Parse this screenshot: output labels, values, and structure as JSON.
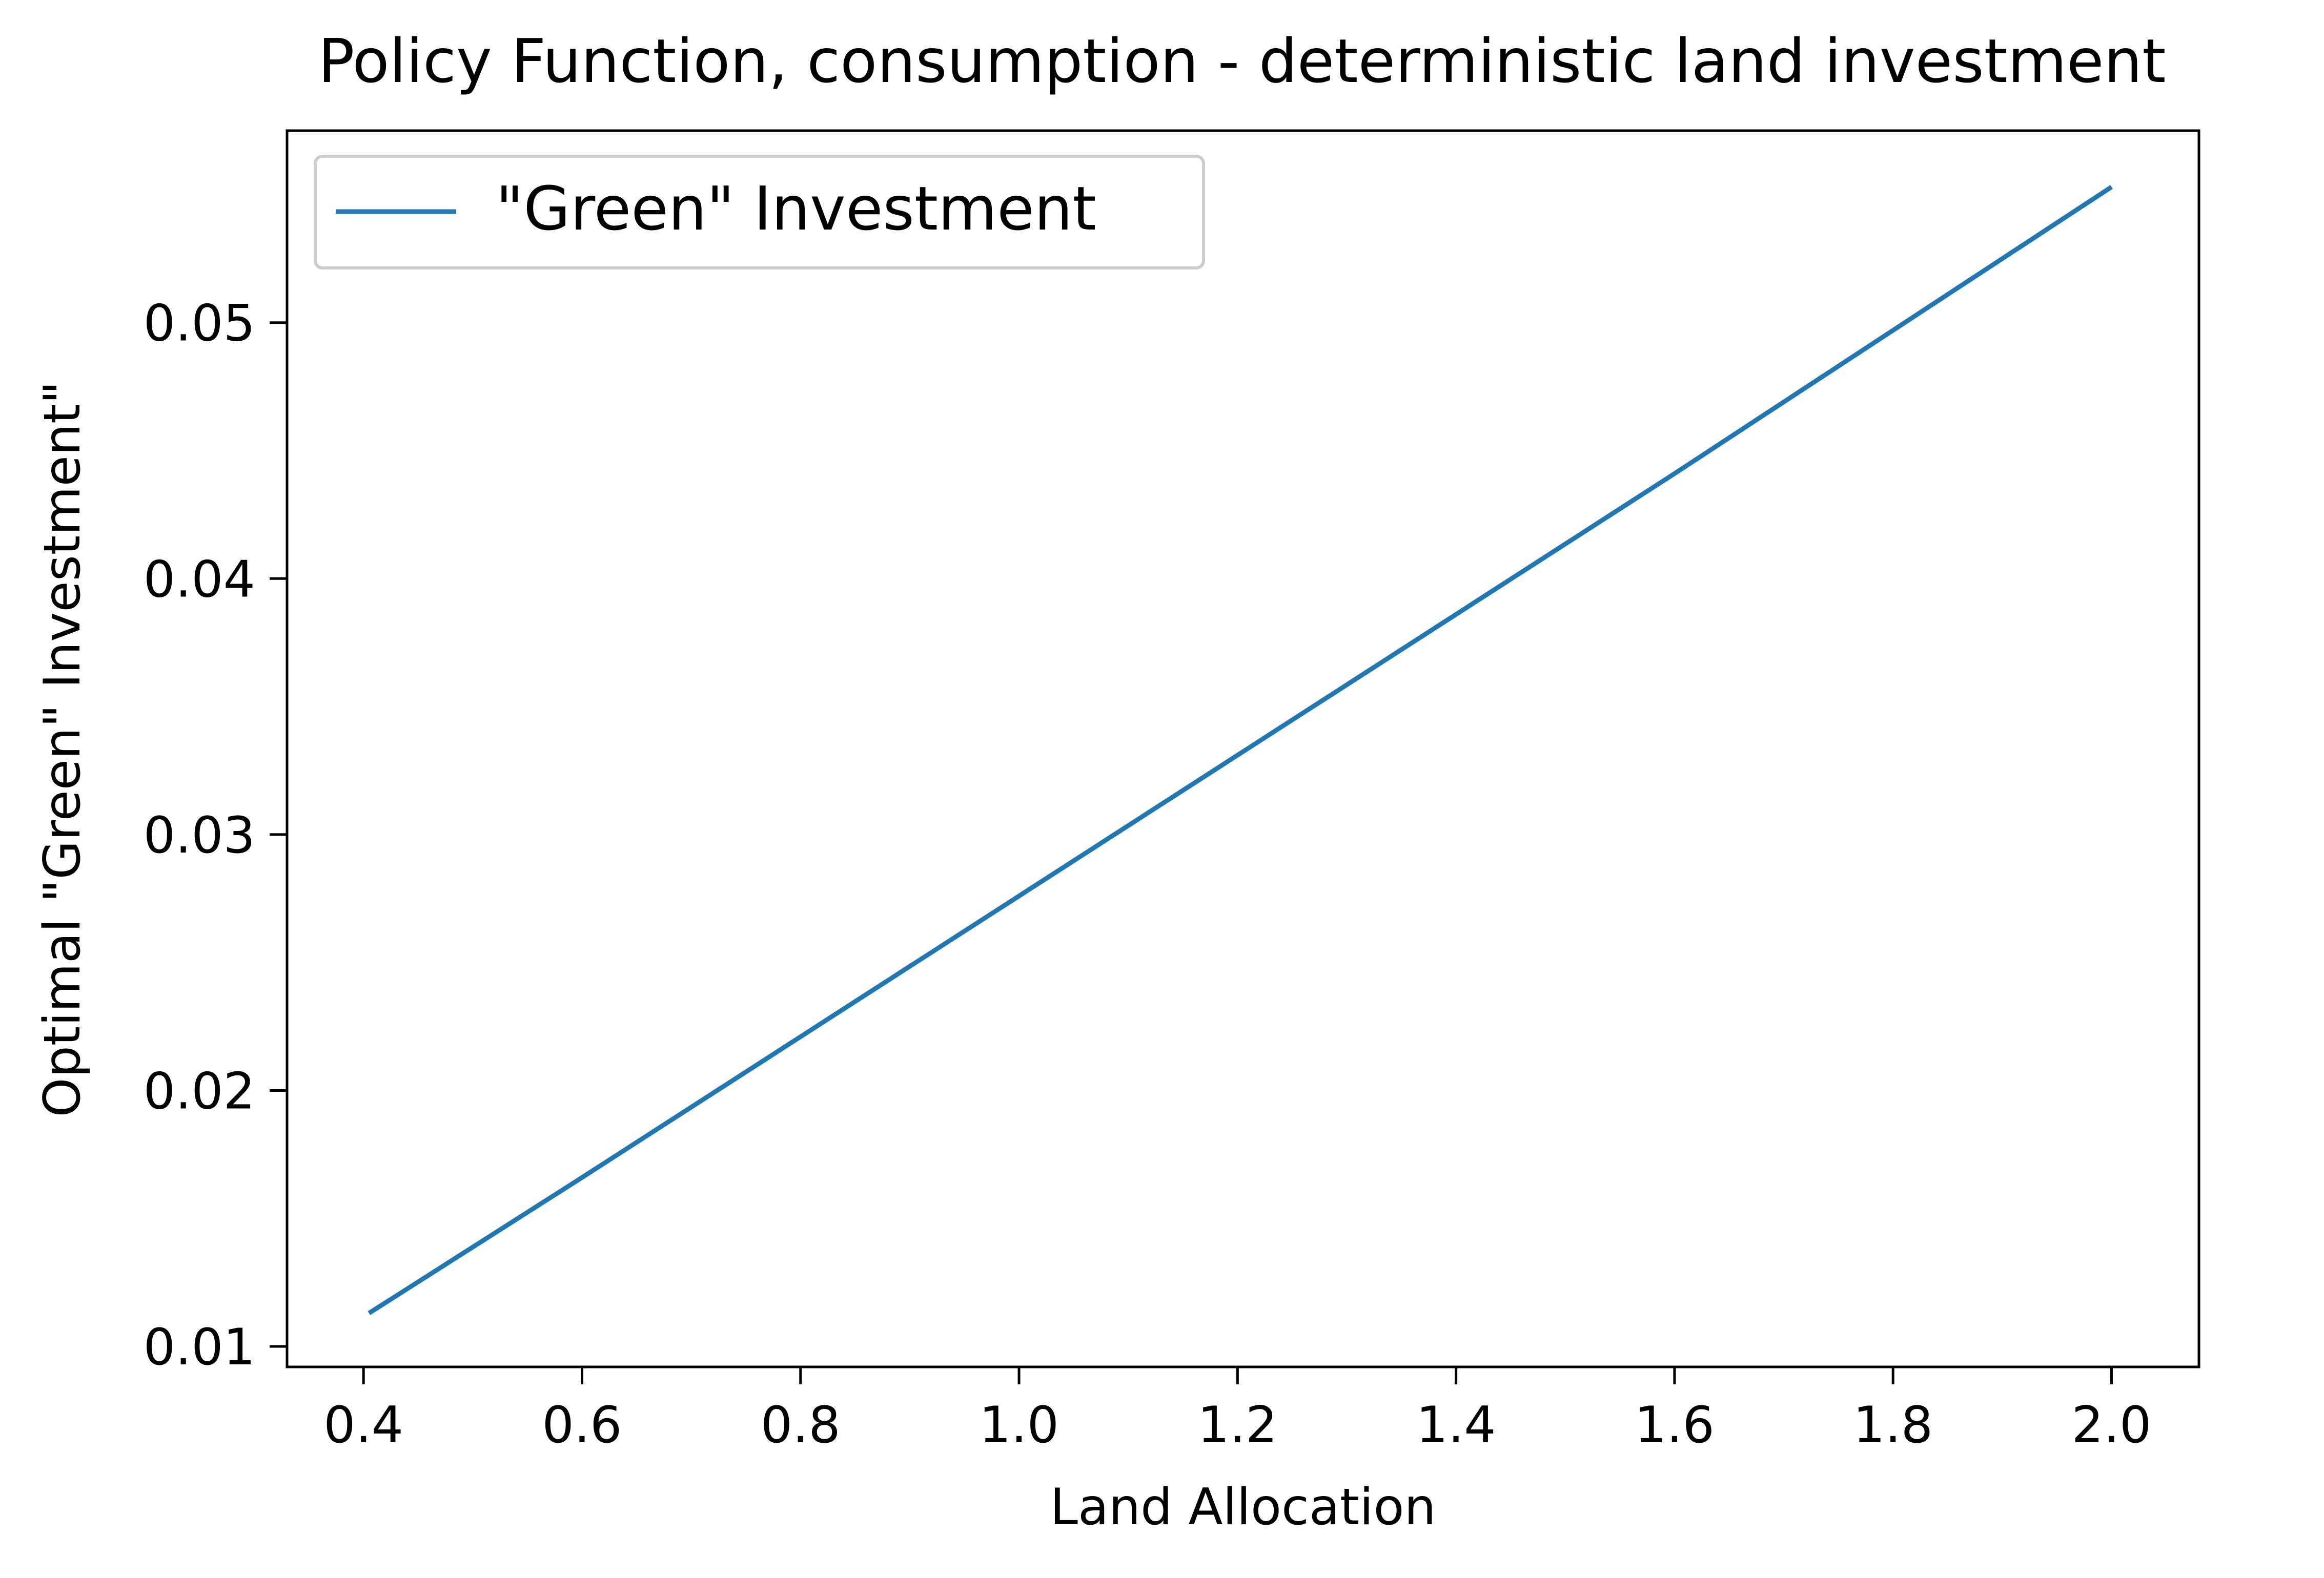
{
  "chart_data": {
    "type": "line",
    "title": "Policy Function, consumption - deterministic land investment",
    "xlabel": "Land Allocation",
    "ylabel": "Optimal \"Green\" Investment\"",
    "xlim": [
      0.33,
      2.08
    ],
    "ylim": [
      0.0092,
      0.0575
    ],
    "xticks": [
      0.4,
      0.6,
      0.8,
      1.0,
      1.2,
      1.4,
      1.6,
      1.8,
      2.0
    ],
    "xtick_labels": [
      "0.4",
      "0.6",
      "0.8",
      "1.0",
      "1.2",
      "1.4",
      "1.6",
      "1.8",
      "2.0"
    ],
    "yticks": [
      0.01,
      0.02,
      0.03,
      0.04,
      0.05
    ],
    "ytick_labels": [
      "0.01",
      "0.02",
      "0.03",
      "0.04",
      "0.05"
    ],
    "grid": false,
    "legend": "upper-left",
    "series": [
      {
        "name": "\"Green\" Investment",
        "color": "#1f77b4",
        "x": [
          0.405,
          0.6,
          0.8,
          1.0,
          1.2,
          1.4,
          1.6,
          1.8,
          2.0
        ],
        "y": [
          0.0113,
          0.0166,
          0.0221,
          0.0276,
          0.0331,
          0.0386,
          0.0441,
          0.0497,
          0.0553
        ]
      }
    ]
  }
}
